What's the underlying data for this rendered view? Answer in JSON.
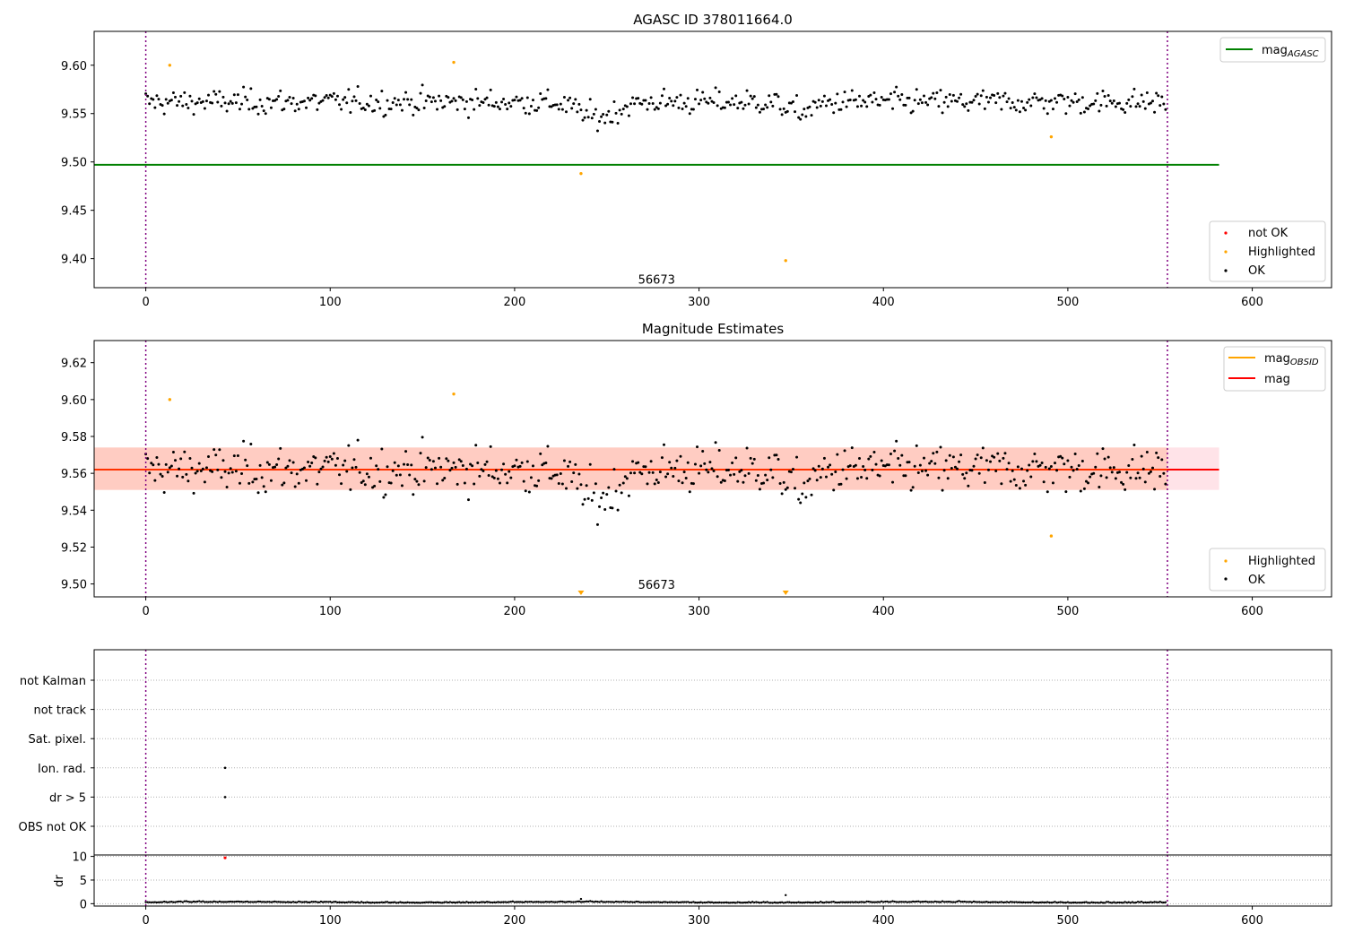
{
  "chart_data": [
    {
      "type": "scatter",
      "panel": "top",
      "title": "AGASC ID 378011664.0",
      "xlabel": "",
      "ylabel": "",
      "xlim": [
        -28,
        643
      ],
      "ylim": [
        9.37,
        9.635
      ],
      "x_ticks": [
        0,
        100,
        200,
        300,
        400,
        500,
        600
      ],
      "y_ticks": [
        9.4,
        9.45,
        9.5,
        9.55,
        9.6
      ],
      "y_tick_labels": [
        "9.40",
        "9.45",
        "9.50",
        "9.55",
        "9.60"
      ],
      "obsid_label": {
        "text": "56673",
        "x": 277,
        "y": 9.378
      },
      "vlines": [
        0,
        554
      ],
      "hlines": [
        {
          "name": "mag_AGASC",
          "y": 9.497,
          "x0": -28,
          "x1": 582,
          "color": "#008000"
        }
      ],
      "highlighted": [
        {
          "x": 13,
          "y": 9.6
        },
        {
          "x": 167,
          "y": 9.603
        },
        {
          "x": 236,
          "y": 9.488
        },
        {
          "x": 347,
          "y": 9.398
        },
        {
          "x": 491,
          "y": 9.526
        }
      ],
      "not_ok": [],
      "ok_series": {
        "n": 554,
        "mean": 9.562,
        "spread": 0.012,
        "dips": [
          {
            "x": 245,
            "depth": 0.016,
            "width": 14
          },
          {
            "x": 355,
            "depth": 0.01,
            "width": 10
          }
        ]
      },
      "legend_upper": {
        "position": "upper right",
        "items": [
          {
            "label_main": "mag",
            "label_sub": "AGASC",
            "color": "#008000",
            "marker": "line"
          }
        ]
      },
      "legend_lower": {
        "position": "lower right",
        "items": [
          {
            "label": "not OK",
            "color": "#ff0000",
            "marker": "dot"
          },
          {
            "label": "Highlighted",
            "color": "#ffa500",
            "marker": "dot"
          },
          {
            "label": "OK",
            "color": "#000000",
            "marker": "dot"
          }
        ]
      }
    },
    {
      "type": "scatter",
      "panel": "middle",
      "title": "Magnitude Estimates",
      "xlabel": "",
      "ylabel": "",
      "xlim": [
        -28,
        643
      ],
      "ylim": [
        9.493,
        9.632
      ],
      "x_ticks": [
        0,
        100,
        200,
        300,
        400,
        500,
        600
      ],
      "y_ticks": [
        9.5,
        9.52,
        9.54,
        9.56,
        9.58,
        9.6,
        9.62
      ],
      "y_tick_labels": [
        "9.50",
        "9.52",
        "9.54",
        "9.56",
        "9.58",
        "9.60",
        "9.62"
      ],
      "obsid_label": {
        "text": "56673",
        "x": 277,
        "y": 9.496
      },
      "vlines": [
        0,
        554
      ],
      "band_outer": {
        "x0": -28,
        "x1": 582,
        "y0": 9.551,
        "y1": 9.574,
        "color": "#ffc0cb"
      },
      "band_inner": {
        "x0": -28,
        "x1": 554,
        "y0": 9.551,
        "y1": 9.574,
        "color": "#ffa07a"
      },
      "mag_line": {
        "y": 9.562,
        "x0": -28,
        "x1": 582,
        "color": "#ff0000"
      },
      "mag_obsid_line": {
        "y": 9.562,
        "x0": -28,
        "x1": 554,
        "color": "#ffa500"
      },
      "highlighted": [
        {
          "x": 13,
          "y": 9.6
        },
        {
          "x": 167,
          "y": 9.603
        },
        {
          "x": 491,
          "y": 9.526
        }
      ],
      "highlighted_offscale": [
        {
          "x": 236
        },
        {
          "x": 347
        }
      ],
      "legend_upper": {
        "position": "upper right",
        "items": [
          {
            "label_main": "mag",
            "label_sub": "OBSID",
            "color": "#ffa500",
            "marker": "line"
          },
          {
            "label_main": "mag",
            "label_sub": "",
            "color": "#ff0000",
            "marker": "line"
          }
        ]
      },
      "legend_lower": {
        "position": "lower right",
        "items": [
          {
            "label": "Highlighted",
            "color": "#ffa500",
            "marker": "dot"
          },
          {
            "label": "OK",
            "color": "#000000",
            "marker": "dot"
          }
        ]
      }
    },
    {
      "type": "scatter",
      "panel": "flags",
      "title": "",
      "xlim": [
        -28,
        643
      ],
      "categories": [
        "not Kalman",
        "not track",
        "Sat. pixel.",
        "Ion. rad.",
        "dr > 5",
        "OBS not OK"
      ],
      "points": [
        {
          "category": "Ion. rad.",
          "x": 43
        },
        {
          "category": "dr > 5",
          "x": 43
        }
      ],
      "vlines": [
        0,
        554
      ]
    },
    {
      "type": "scatter",
      "panel": "dr",
      "title": "",
      "xlabel": "",
      "ylabel": "dr",
      "xlim": [
        -28,
        643
      ],
      "ylim": [
        -0.5,
        10.3
      ],
      "x_ticks": [
        0,
        100,
        200,
        300,
        400,
        500,
        600
      ],
      "y_ticks": [
        0,
        5,
        10
      ],
      "y_tick_labels": [
        "0",
        "5",
        "10"
      ],
      "not_ok": [
        {
          "x": 43,
          "y": 9.7
        }
      ],
      "outliers": [
        {
          "x": 236,
          "y": 1.0
        },
        {
          "x": 347,
          "y": 1.8
        }
      ],
      "ok_series": {
        "n": 554,
        "level": 0.25
      },
      "vlines": [
        0,
        554
      ]
    }
  ],
  "colors": {
    "ok": "#000000",
    "highlighted": "#ffa500",
    "not_ok": "#ff0000",
    "vline": "#800080",
    "grid": "#b0b0b0"
  }
}
